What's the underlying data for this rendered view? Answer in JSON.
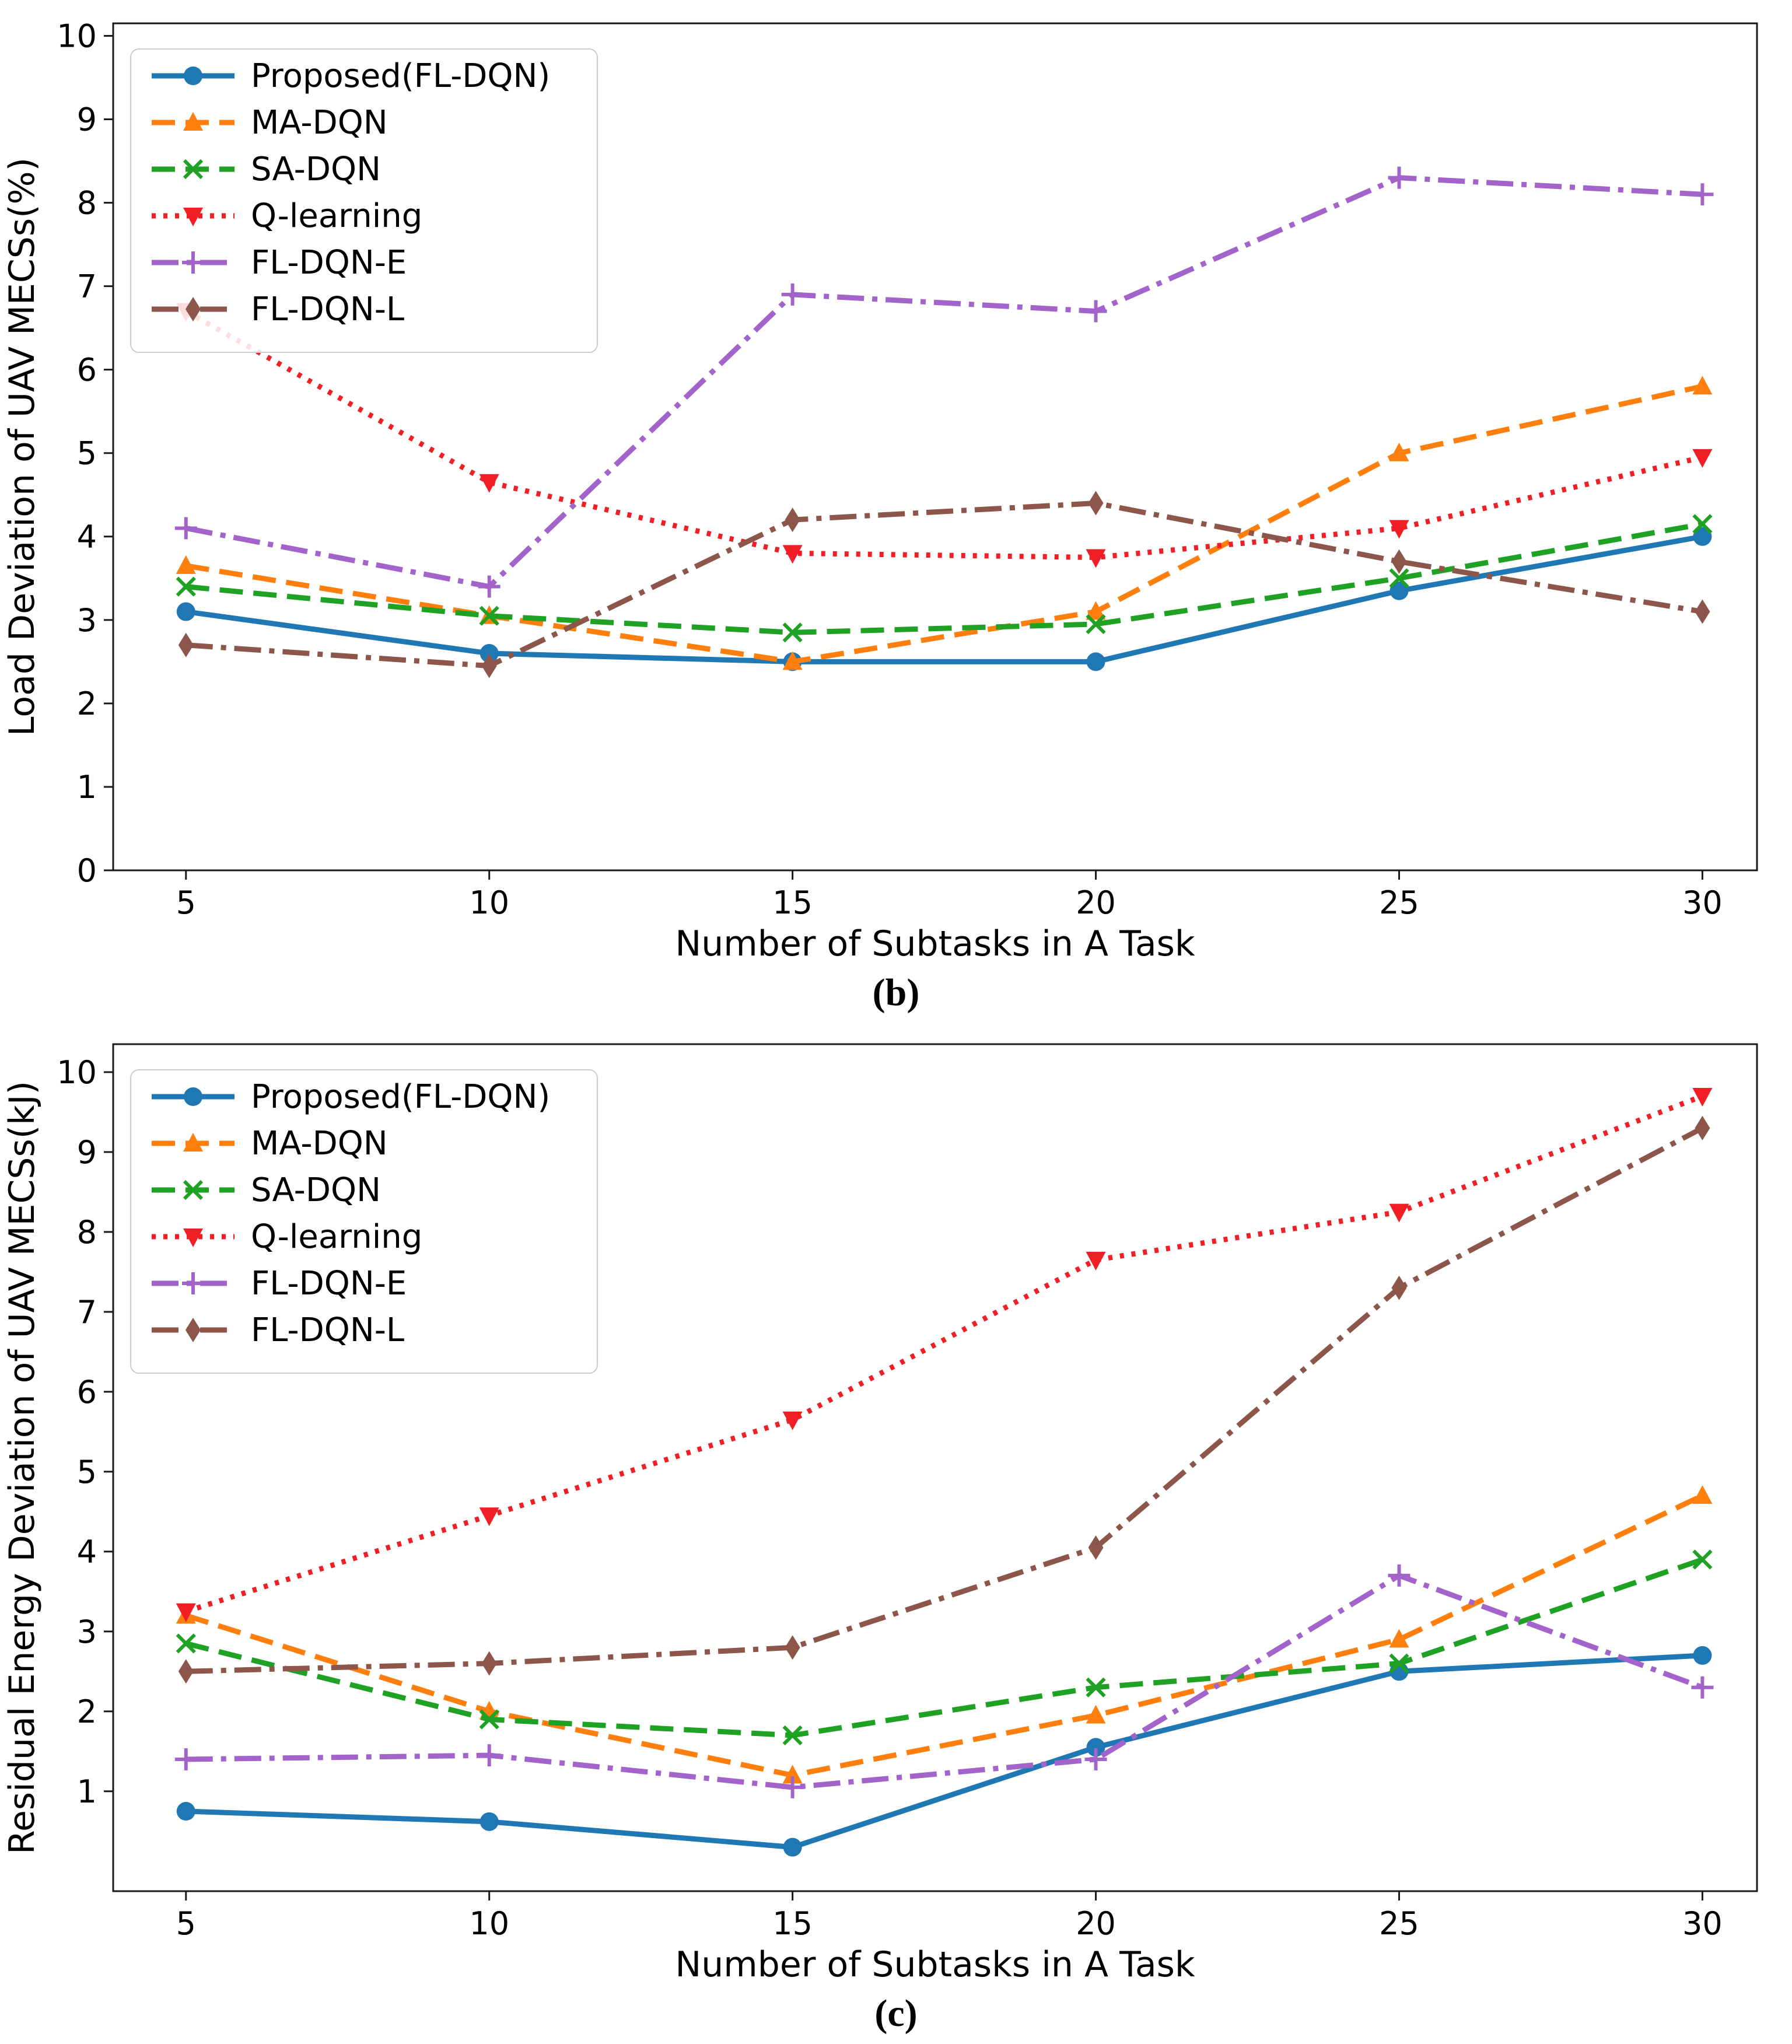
{
  "figure": {
    "caption_b": "(b)",
    "caption_c": "(c)",
    "xlabel": "Number of Subtasks in A Task"
  },
  "legend": {
    "entries": [
      "Proposed(FL-DQN)",
      "MA-DQN",
      "SA-DQN",
      "Q-learning",
      "FL-DQN-E",
      "FL-DQN-L"
    ]
  },
  "colors": {
    "proposed": "#1f77b4",
    "ma_dqn": "#ff7f0e",
    "sa_dqn": "#1fa124",
    "q_learning": "#f01e25",
    "fl_dqn_e": "#a263cb",
    "fl_dqn_l": "#8c564b",
    "axis": "#1a1a1a",
    "legend_border": "#cccccc"
  },
  "chart_data": [
    {
      "id": "chart-b",
      "type": "line",
      "title": "",
      "xlabel": "Number of Subtasks in A Task",
      "ylabel": "Load Deviation of UAV MECSs(%)",
      "caption": "(b)",
      "x": [
        5,
        10,
        15,
        20,
        25,
        30
      ],
      "xticks": [
        5,
        10,
        15,
        20,
        25,
        30
      ],
      "yticks": [
        0,
        1,
        2,
        3,
        4,
        5,
        6,
        7,
        8,
        9,
        10
      ],
      "xlim": [
        3.8,
        30.9
      ],
      "ylim": [
        0,
        10.15
      ],
      "grid": false,
      "legend_position": "upper left",
      "series": [
        {
          "name": "Proposed(FL-DQN)",
          "color": "#1f77b4",
          "linestyle": "solid",
          "marker": "circle",
          "values": [
            3.1,
            2.6,
            2.5,
            2.5,
            3.35,
            4.0
          ]
        },
        {
          "name": "MA-DQN",
          "color": "#ff7f0e",
          "linestyle": "dashed",
          "marker": "triangle-up",
          "values": [
            3.65,
            3.05,
            2.5,
            3.1,
            5.0,
            5.8
          ]
        },
        {
          "name": "SA-DQN",
          "color": "#1fa124",
          "linestyle": "dashed",
          "marker": "x",
          "values": [
            3.4,
            3.05,
            2.85,
            2.95,
            3.5,
            4.15
          ]
        },
        {
          "name": "Q-learning",
          "color": "#f01e25",
          "linestyle": "dotted",
          "marker": "triangle-down",
          "values": [
            6.7,
            4.65,
            3.8,
            3.75,
            4.1,
            4.95
          ]
        },
        {
          "name": "FL-DQN-E",
          "color": "#a263cb",
          "linestyle": "dashdot",
          "marker": "plus",
          "values": [
            4.1,
            3.4,
            6.9,
            6.7,
            8.3,
            8.1
          ]
        },
        {
          "name": "FL-DQN-L",
          "color": "#8c564b",
          "linestyle": "dashdot",
          "marker": "diamond",
          "values": [
            2.7,
            2.45,
            4.2,
            4.4,
            3.7,
            3.1
          ]
        }
      ]
    },
    {
      "id": "chart-c",
      "type": "line",
      "title": "",
      "xlabel": "Number of Subtasks in A Task",
      "ylabel": "Residual Energy Deviation of UAV MECSs(kJ)",
      "caption": "(c)",
      "x": [
        5,
        10,
        15,
        20,
        25,
        30
      ],
      "xticks": [
        5,
        10,
        15,
        20,
        25,
        30
      ],
      "yticks": [
        1,
        2,
        3,
        4,
        5,
        6,
        7,
        8,
        9,
        10
      ],
      "xlim": [
        3.8,
        30.9
      ],
      "ylim": [
        -0.25,
        10.35
      ],
      "grid": false,
      "legend_position": "upper left",
      "series": [
        {
          "name": "Proposed(FL-DQN)",
          "color": "#1f77b4",
          "linestyle": "solid",
          "marker": "circle",
          "values": [
            0.75,
            0.62,
            0.3,
            1.55,
            2.5,
            2.7
          ]
        },
        {
          "name": "MA-DQN",
          "color": "#ff7f0e",
          "linestyle": "dashed",
          "marker": "triangle-up",
          "values": [
            3.2,
            2.0,
            1.2,
            1.95,
            2.9,
            4.7
          ]
        },
        {
          "name": "SA-DQN",
          "color": "#1fa124",
          "linestyle": "dashed",
          "marker": "x",
          "values": [
            2.85,
            1.9,
            1.7,
            2.3,
            2.6,
            3.9
          ]
        },
        {
          "name": "Q-learning",
          "color": "#f01e25",
          "linestyle": "dotted",
          "marker": "triangle-down",
          "values": [
            3.25,
            4.45,
            5.65,
            7.65,
            8.25,
            9.7
          ]
        },
        {
          "name": "FL-DQN-E",
          "color": "#a263cb",
          "linestyle": "dashdot",
          "marker": "plus",
          "values": [
            1.4,
            1.45,
            1.05,
            1.4,
            3.7,
            2.3
          ]
        },
        {
          "name": "FL-DQN-L",
          "color": "#8c564b",
          "linestyle": "dashdot",
          "marker": "diamond",
          "values": [
            2.5,
            2.6,
            2.8,
            4.05,
            7.3,
            9.3
          ]
        }
      ]
    }
  ]
}
